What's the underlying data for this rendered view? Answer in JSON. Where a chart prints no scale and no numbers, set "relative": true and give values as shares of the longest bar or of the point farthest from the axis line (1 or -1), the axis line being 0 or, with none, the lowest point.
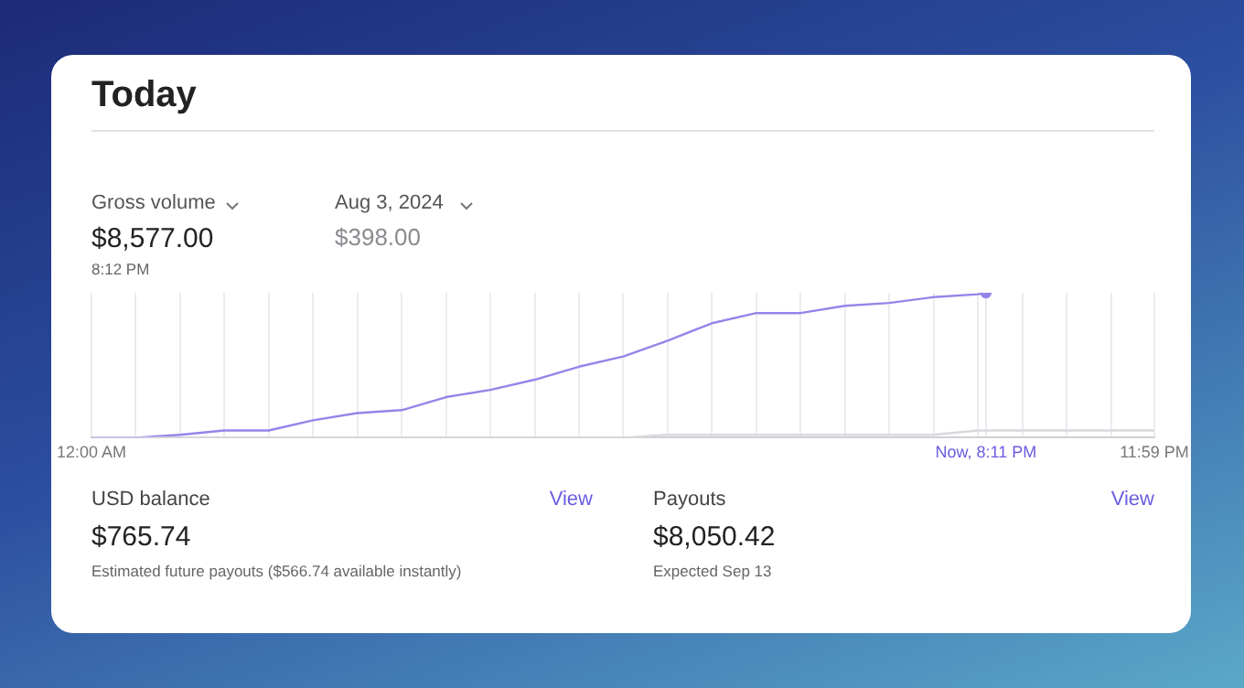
{
  "chart_data": {
    "type": "line",
    "title": "Today",
    "relative": true,
    "grid": "x",
    "annotations": [
      "Gross volume",
      "$8,577.00",
      "8:12 PM",
      "Aug 3, 2024",
      "$398.00",
      "USD balance",
      "View",
      "$765.74",
      "Estimated future payouts ($566.74 available instantly)",
      "Payouts",
      "View",
      "$8,050.42",
      "Expected Sep 13"
    ],
    "xlim": [
      0,
      23.98
    ],
    "xticks": [
      {
        "value": 0,
        "label": "12:00 AM"
      },
      {
        "value": 1,
        "label": null
      },
      {
        "value": 2,
        "label": null
      },
      {
        "value": 3,
        "label": null
      },
      {
        "value": 4,
        "label": null
      },
      {
        "value": 5,
        "label": null
      },
      {
        "value": 6,
        "label": null
      },
      {
        "value": 7,
        "label": null
      },
      {
        "value": 8,
        "label": null
      },
      {
        "value": 9,
        "label": null
      },
      {
        "value": 10,
        "label": null
      },
      {
        "value": 11,
        "label": null
      },
      {
        "value": 12,
        "label": null
      },
      {
        "value": 13,
        "label": null
      },
      {
        "value": 14,
        "label": null
      },
      {
        "value": 15,
        "label": null
      },
      {
        "value": 16,
        "label": null
      },
      {
        "value": 17,
        "label": null
      },
      {
        "value": 18,
        "label": null
      },
      {
        "value": 19,
        "label": null
      },
      {
        "value": 20,
        "label": null
      },
      {
        "value": 20.18,
        "label": "Now, 8:11 PM"
      },
      {
        "value": 21,
        "label": null
      },
      {
        "value": 22,
        "label": null
      },
      {
        "value": 23,
        "label": null
      },
      {
        "value": 23.98,
        "label": "11:59 PM"
      }
    ],
    "series": [
      {
        "color": "#9286ea",
        "x": [
          0,
          1,
          2,
          3,
          4,
          5,
          6,
          7,
          8,
          9,
          10,
          11,
          12,
          13,
          14,
          15,
          16,
          17,
          18,
          19,
          20,
          20.18
        ],
        "values": [
          0,
          0,
          0.02,
          0.05,
          0.05,
          0.12,
          0.17,
          0.19,
          0.28,
          0.33,
          0.4,
          0.49,
          0.56,
          0.67,
          0.79,
          0.86,
          0.86,
          0.91,
          0.93,
          0.97,
          0.99,
          1
        ]
      },
      {
        "color": "#d9d9de",
        "x": [
          0,
          12,
          13,
          19,
          20,
          23.98
        ],
        "values": [
          0,
          0,
          0.02,
          0.02,
          0.05,
          0.05
        ]
      }
    ]
  }
}
